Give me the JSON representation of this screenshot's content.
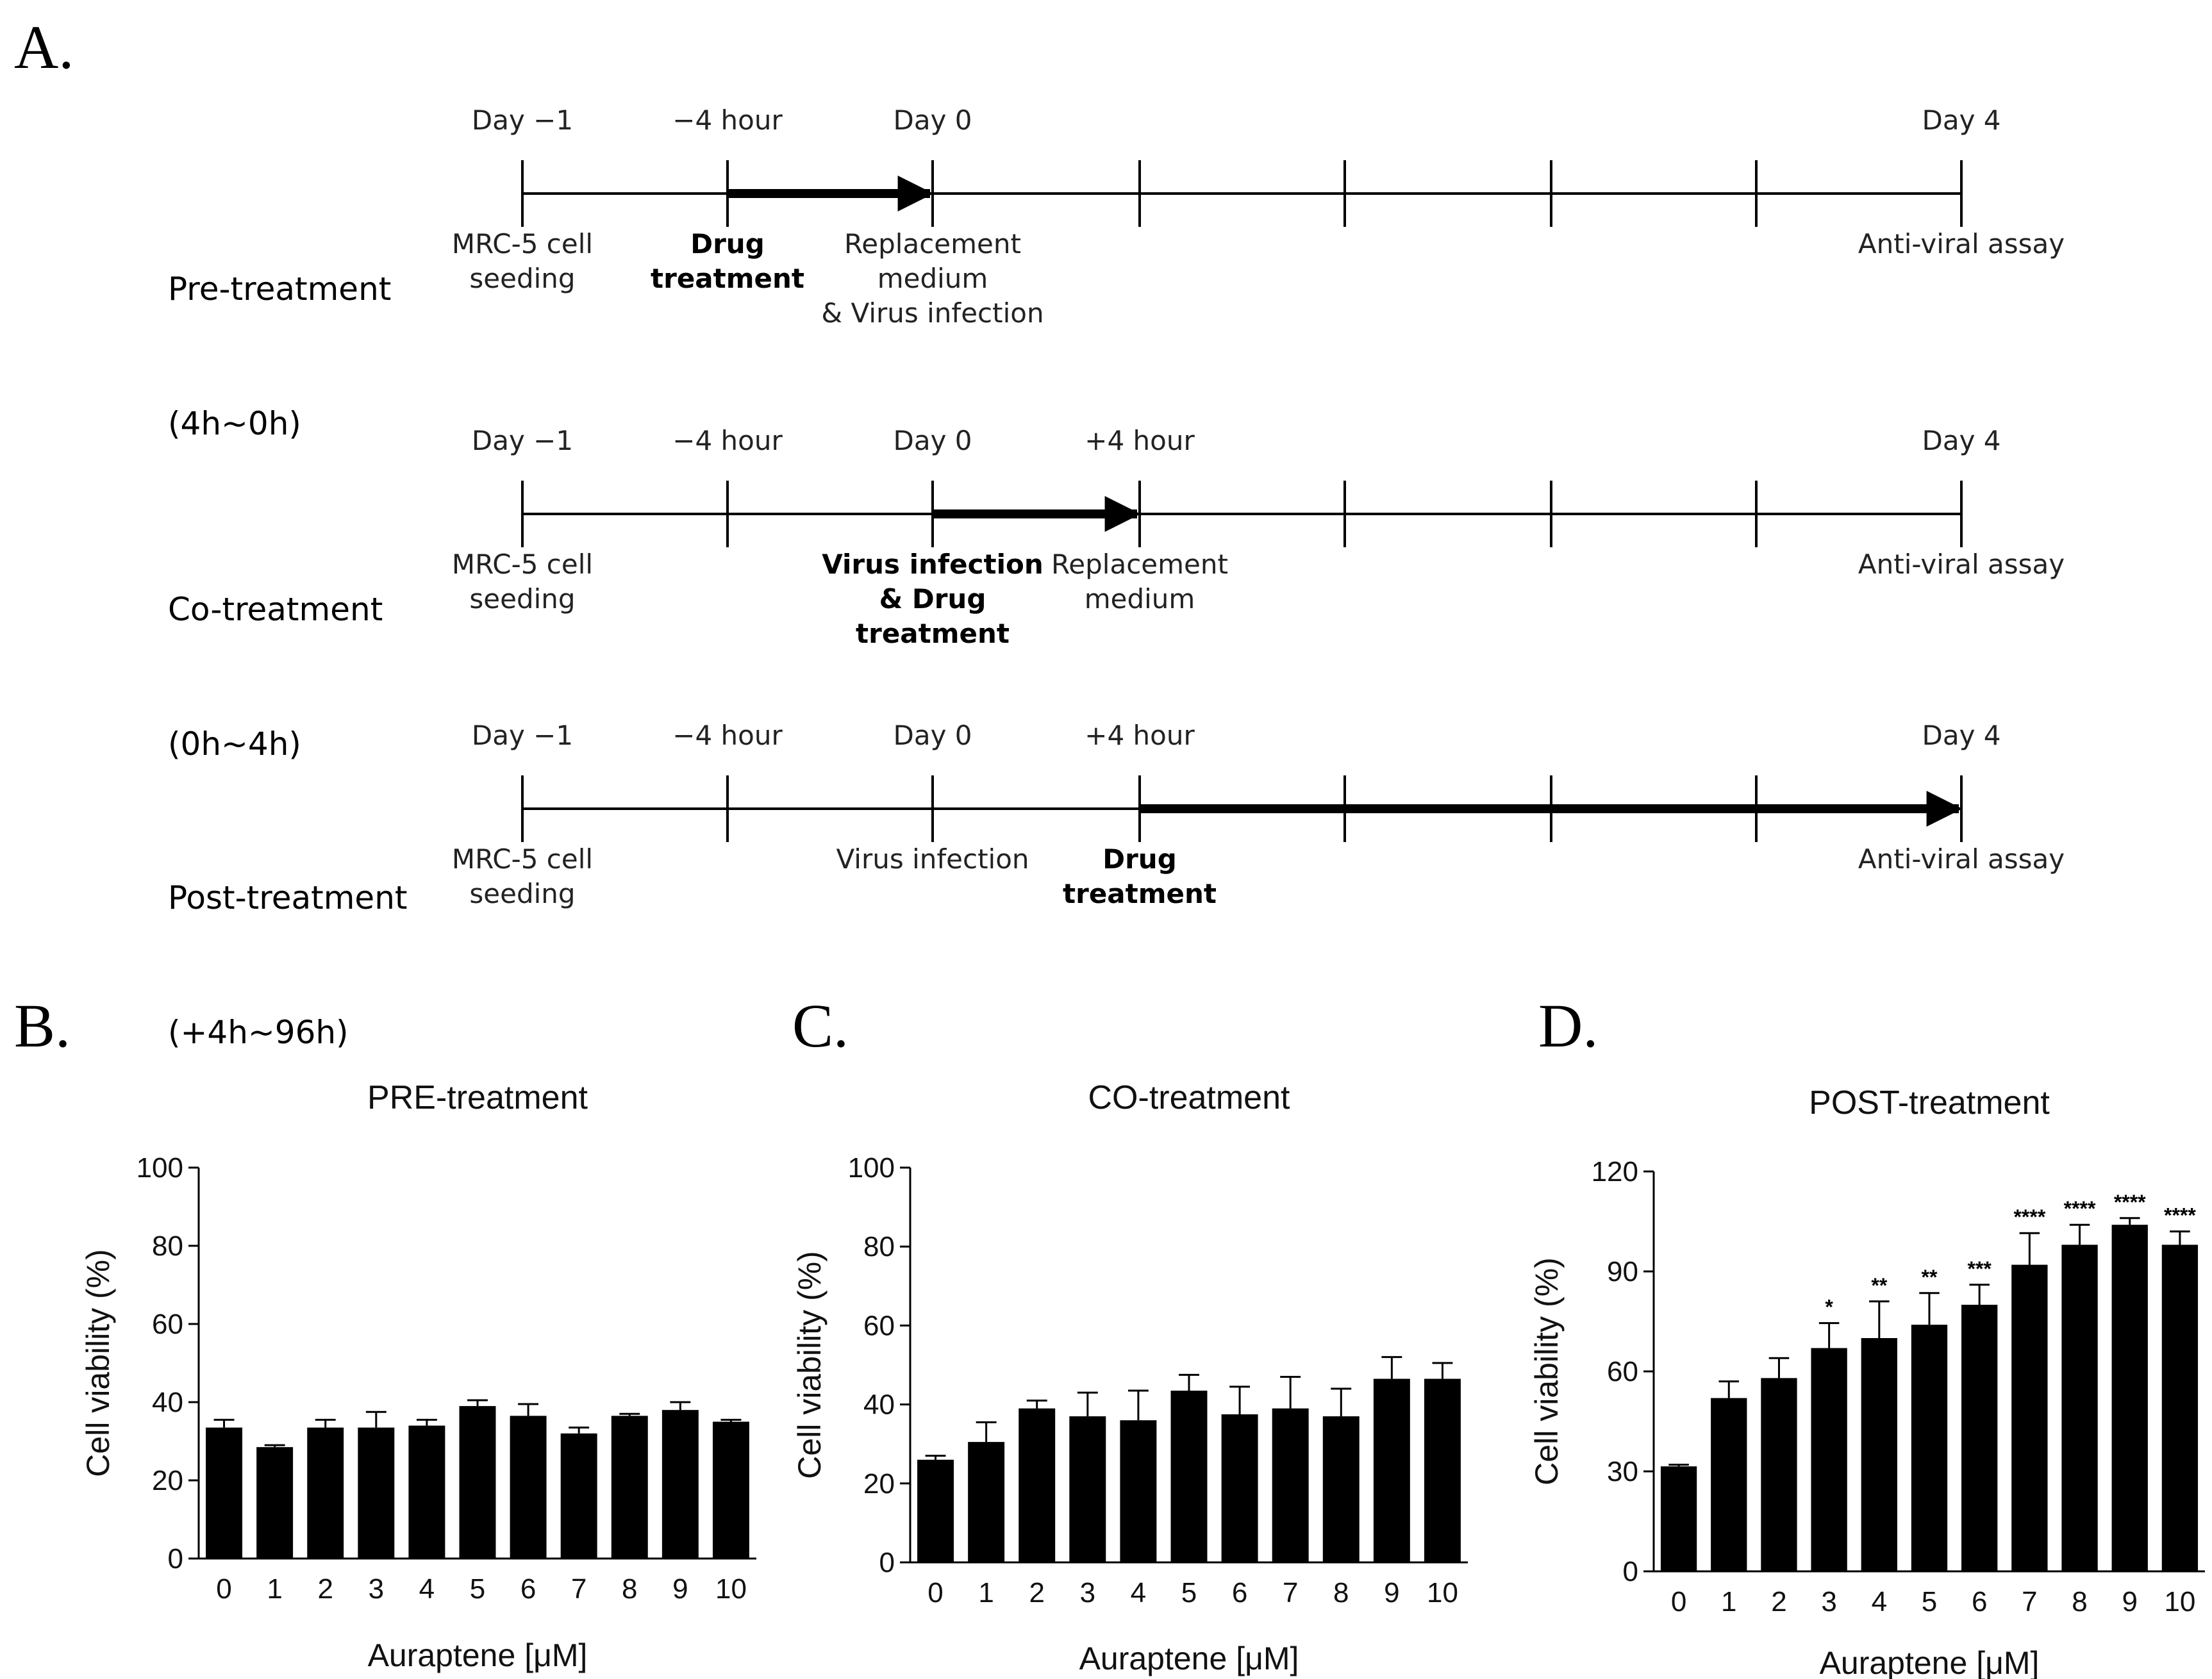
{
  "panels": {
    "A": "A.",
    "B": "B.",
    "C": "C.",
    "D": "D."
  },
  "timeline": {
    "rows": [
      {
        "title": [
          "Pre-treatment",
          "(4h~0h)"
        ],
        "top_labels": [
          "Day −1",
          "−4 hour",
          "Day 0",
          "Day 4"
        ],
        "bold_arrow": [
          1,
          2
        ],
        "bottom_labels": [
          {
            "tick": 0,
            "lines": [
              "MRC-5 cell",
              "seeding"
            ],
            "bold": false
          },
          {
            "tick": 1,
            "lines": [
              "Drug",
              "treatment"
            ],
            "bold": true
          },
          {
            "tick": 2,
            "lines": [
              "Replacement",
              "medium",
              "& Virus infection"
            ],
            "bold": false
          },
          {
            "tick": 7,
            "lines": [
              "Anti-viral assay"
            ],
            "bold": false
          }
        ]
      },
      {
        "title": [
          "Co-treatment",
          "(0h~4h)"
        ],
        "top_labels": [
          "Day −1",
          "−4 hour",
          "Day 0",
          "+4 hour",
          "Day 4"
        ],
        "bold_arrow": [
          2,
          3
        ],
        "bottom_labels": [
          {
            "tick": 0,
            "lines": [
              "MRC-5 cell",
              "seeding"
            ],
            "bold": false
          },
          {
            "tick": 2,
            "lines": [
              "Virus infection",
              "& Drug",
              "treatment"
            ],
            "bold": true
          },
          {
            "tick": 3,
            "lines": [
              "Replacement",
              "medium"
            ],
            "bold": false
          },
          {
            "tick": 7,
            "lines": [
              "Anti-viral assay"
            ],
            "bold": false
          }
        ]
      },
      {
        "title": [
          "Post-treatment",
          "(+4h~96h)"
        ],
        "top_labels": [
          "Day −1",
          "−4 hour",
          "Day 0",
          "+4 hour",
          "Day 4"
        ],
        "bold_arrow": [
          3,
          7
        ],
        "bottom_labels": [
          {
            "tick": 0,
            "lines": [
              "MRC-5 cell",
              "seeding"
            ],
            "bold": false
          },
          {
            "tick": 2,
            "lines": [
              "Virus infection"
            ],
            "bold": false
          },
          {
            "tick": 3,
            "lines": [
              "Drug",
              "treatment"
            ],
            "bold": true
          },
          {
            "tick": 7,
            "lines": [
              "Anti-viral assay"
            ],
            "bold": false
          }
        ]
      }
    ]
  },
  "chart_data": [
    {
      "type": "bar",
      "title": "PRE-treatment",
      "xlabel": "Auraptene [μM]",
      "ylabel": "Cell viability (%)",
      "categories": [
        "0",
        "1",
        "2",
        "3",
        "4",
        "5",
        "6",
        "7",
        "8",
        "9",
        "10"
      ],
      "values": [
        33.5,
        28.5,
        33.5,
        33.5,
        34,
        39,
        36.5,
        32,
        36.5,
        38,
        35
      ],
      "errors": [
        2,
        0.5,
        2,
        4,
        1.5,
        1.5,
        3,
        1.5,
        0.5,
        2,
        0.5
      ],
      "ylim": [
        0,
        100
      ],
      "yticks": [
        0,
        20,
        40,
        60,
        80,
        100
      ],
      "significance": [
        "",
        "",
        "",
        "",
        "",
        "",
        "",
        "",
        "",
        "",
        ""
      ],
      "color": "#000000"
    },
    {
      "type": "bar",
      "title": "CO-treatment",
      "xlabel": "Auraptene [μM]",
      "ylabel": "Cell viability (%)",
      "categories": [
        "0",
        "1",
        "2",
        "3",
        "4",
        "5",
        "6",
        "7",
        "8",
        "9",
        "10"
      ],
      "values": [
        26,
        30.5,
        39,
        37,
        36,
        43.5,
        37.5,
        39,
        37,
        46.5,
        46.5
      ],
      "errors": [
        1,
        5,
        2,
        6,
        7.5,
        4,
        7,
        8,
        7,
        5.5,
        4
      ],
      "ylim": [
        0,
        100
      ],
      "yticks": [
        0,
        20,
        40,
        60,
        80,
        100
      ],
      "significance": [
        "",
        "",
        "",
        "",
        "",
        "",
        "",
        "",
        "",
        "",
        ""
      ],
      "color": "#000000"
    },
    {
      "type": "bar",
      "title": "POST-treatment",
      "xlabel": "Auraptene [μM]",
      "ylabel": "Cell viability (%)",
      "categories": [
        "0",
        "1",
        "2",
        "3",
        "4",
        "5",
        "6",
        "7",
        "8",
        "9",
        "10"
      ],
      "values": [
        31.5,
        52,
        58,
        67,
        70,
        74,
        80,
        92,
        98,
        104,
        98
      ],
      "errors": [
        0.5,
        5,
        6,
        7.5,
        11,
        9.5,
        6,
        9.5,
        6,
        2,
        4
      ],
      "ylim": [
        0,
        120
      ],
      "yticks": [
        0,
        30,
        60,
        90,
        120
      ],
      "significance": [
        "",
        "",
        "",
        "*",
        "**",
        "**",
        "***",
        "****",
        "****",
        "****",
        "****"
      ],
      "color": "#000000"
    }
  ]
}
